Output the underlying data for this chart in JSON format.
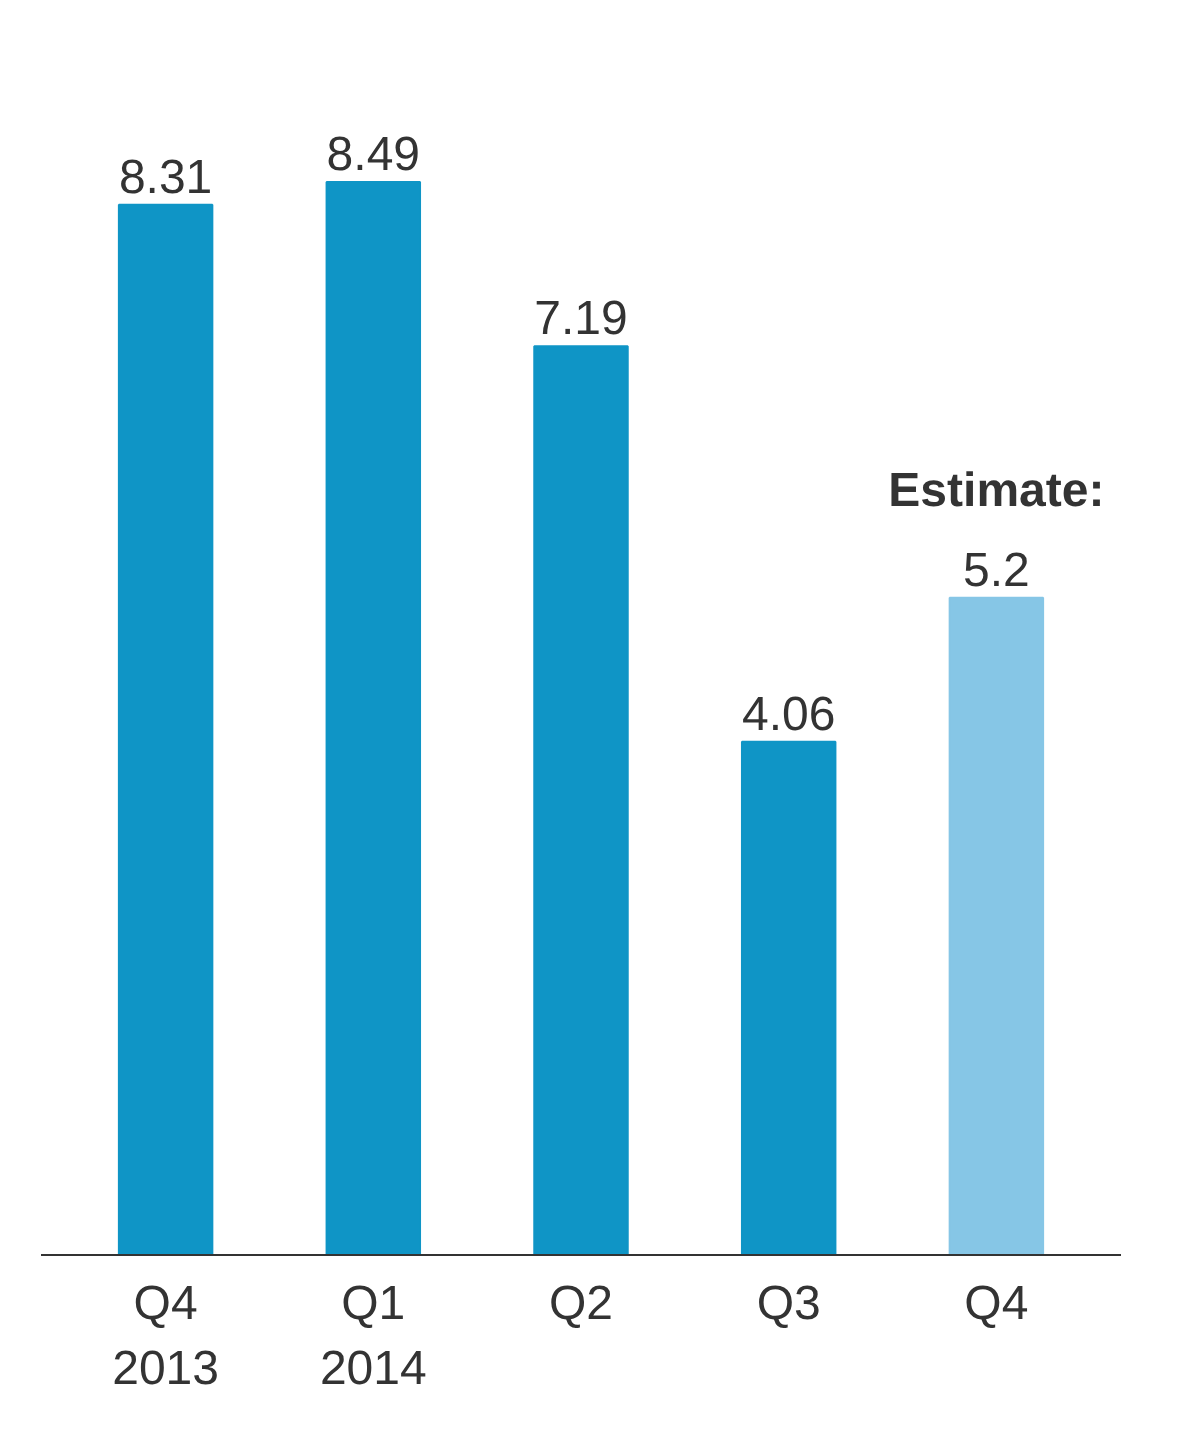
{
  "chart_data": {
    "type": "bar",
    "categories": [
      "Q4\n2013",
      "Q1\n2014",
      "Q2",
      "Q3",
      "Q4"
    ],
    "values": [
      8.31,
      8.49,
      7.19,
      4.06,
      5.2
    ],
    "colors": [
      "#0f95c6",
      "#0f95c6",
      "#0f95c6",
      "#0f95c6",
      "#86c6e6"
    ],
    "tick_labels": "x",
    "data_labels": true,
    "grid": false,
    "annotations": [
      "Estimate:"
    ]
  }
}
